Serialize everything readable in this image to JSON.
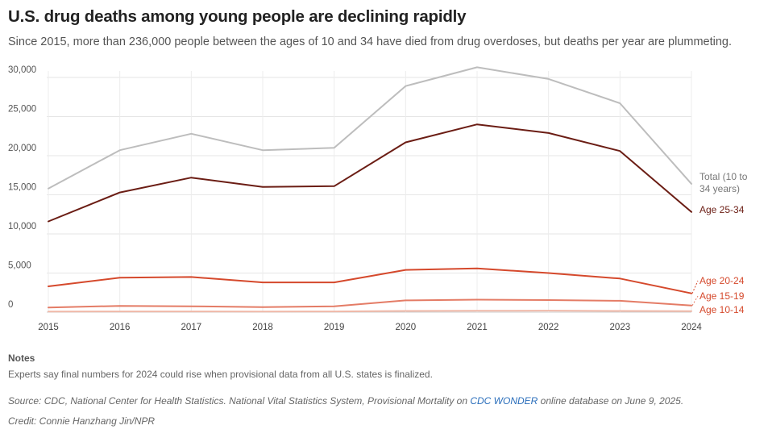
{
  "title": "U.S. drug deaths among young people are declining rapidly",
  "subtitle": "Since 2015, more than 236,000 people between the ages of 10 and 34 have died from drug overdoses, but deaths per year are plummeting.",
  "notes": {
    "heading": "Notes",
    "text": "Experts say final numbers for 2024 could rise when provisional data from all U.S. states is finalized."
  },
  "source": {
    "prefix": "Source: CDC, National Center for Health Statistics. National Vital Statistics System, Provisional Mortality on ",
    "link": "CDC WONDER",
    "suffix": " online database on June 9, 2025."
  },
  "credit": "Credit: Connie Hanzhang Jin/NPR",
  "chart_data": {
    "type": "line",
    "x": [
      2015,
      2016,
      2017,
      2018,
      2019,
      2020,
      2021,
      2022,
      2023,
      2024
    ],
    "ylim": [
      0,
      30000
    ],
    "yticks": [
      0,
      5000,
      10000,
      15000,
      20000,
      25000,
      30000
    ],
    "ytick_labels": [
      "0",
      "5,000",
      "10,000",
      "15,000",
      "20,000",
      "25,000",
      "30,000"
    ],
    "grid": true,
    "series": [
      {
        "name": "Total (10 to 34 years)",
        "color": "#bdbdbd",
        "label_color": "#777777",
        "values": [
          15800,
          20700,
          22800,
          20700,
          21000,
          28900,
          31300,
          29800,
          26700,
          16400
        ]
      },
      {
        "name": "Age 25-34",
        "color": "#6b1d14",
        "label_color": "#6b1d14",
        "values": [
          11600,
          15300,
          17200,
          16000,
          16100,
          21700,
          24000,
          22900,
          20600,
          12800
        ]
      },
      {
        "name": "Age 20-24",
        "color": "#d5492c",
        "label_color": "#d5492c",
        "values": [
          3300,
          4400,
          4500,
          3800,
          3800,
          5400,
          5600,
          5000,
          4300,
          2400
        ]
      },
      {
        "name": "Age 15-19",
        "color": "#e47c66",
        "label_color": "#d5492c",
        "values": [
          600,
          800,
          750,
          650,
          750,
          1500,
          1600,
          1550,
          1450,
          850
        ]
      },
      {
        "name": "Age 10-14",
        "color": "#f0b9a9",
        "label_color": "#d5492c",
        "values": [
          80,
          90,
          90,
          80,
          90,
          150,
          180,
          200,
          150,
          130
        ]
      }
    ]
  }
}
